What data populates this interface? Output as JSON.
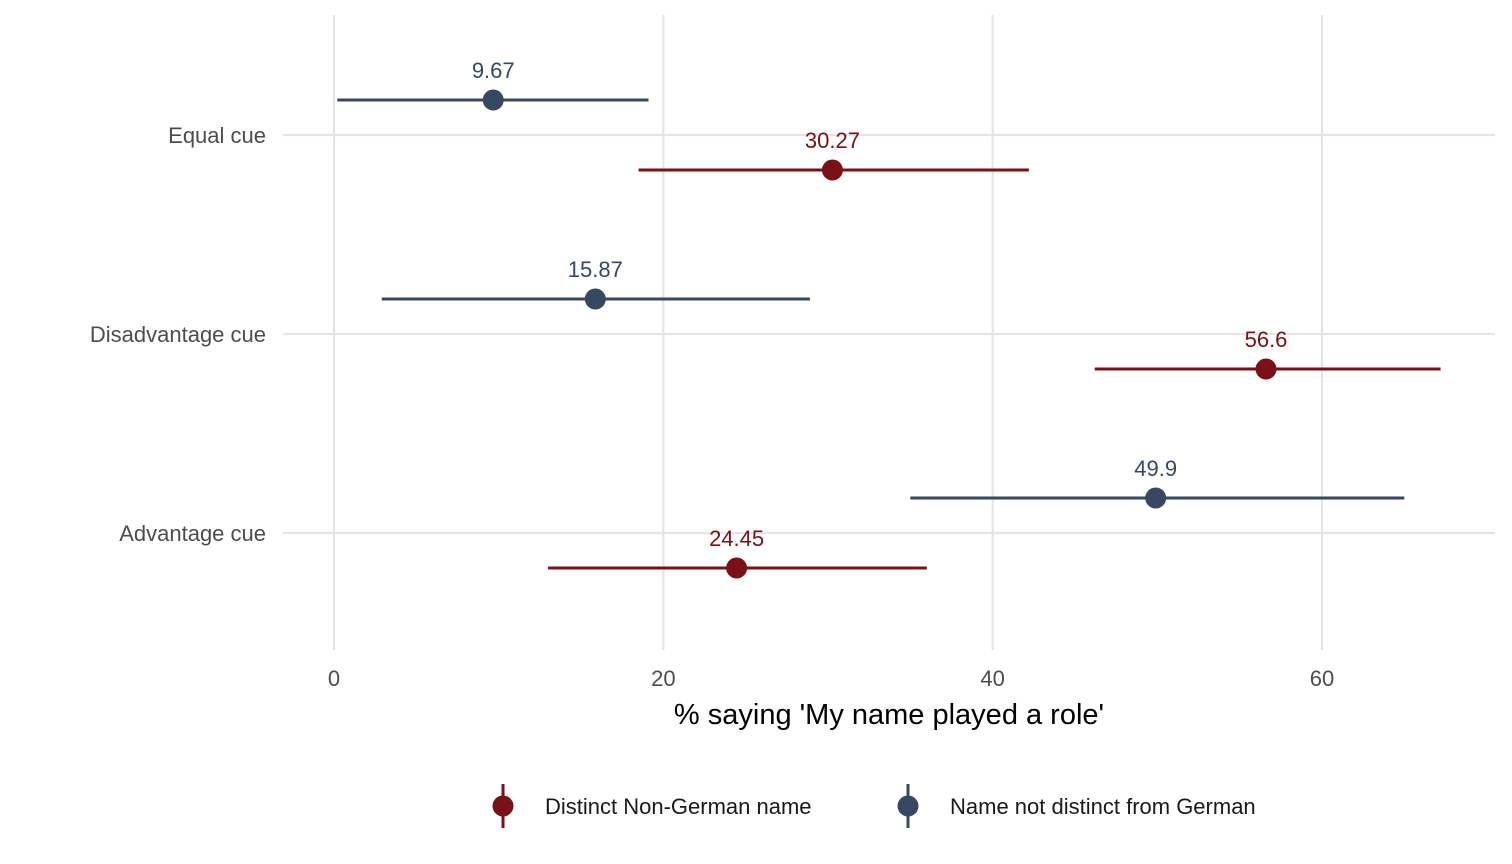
{
  "chart_data": {
    "type": "dot-errorbar",
    "xlabel": "% saying 'My name played a role'",
    "ylabel": "",
    "xlim": [
      0,
      70
    ],
    "x_ticks": [
      0,
      20,
      40,
      60
    ],
    "x_tick_labels": [
      "0",
      "20",
      "40",
      "60"
    ],
    "categories": [
      "Equal cue",
      "Disadvantage cue",
      "Advantage cue"
    ],
    "grid": true,
    "legend_position": "bottom",
    "series": [
      {
        "name": "Distinct Non-German name",
        "color": "#7b1016",
        "points": [
          {
            "category": "Equal cue",
            "value": 30.27,
            "label": "30.27",
            "low": 18.5,
            "high": 42.2
          },
          {
            "category": "Disadvantage cue",
            "value": 56.6,
            "label": "56.6",
            "low": 46.2,
            "high": 67.2
          },
          {
            "category": "Advantage cue",
            "value": 24.45,
            "label": "24.45",
            "low": 13.0,
            "high": 36.0
          }
        ]
      },
      {
        "name": "Name not distinct from German",
        "color": "#374862",
        "points": [
          {
            "category": "Equal cue",
            "value": 9.67,
            "label": "9.67",
            "low": 0.2,
            "high": 19.1
          },
          {
            "category": "Disadvantage cue",
            "value": 15.87,
            "label": "15.87",
            "low": 2.9,
            "high": 28.9
          },
          {
            "category": "Advantage cue",
            "value": 49.9,
            "label": "49.9",
            "low": 35.0,
            "high": 65.0
          }
        ]
      }
    ]
  }
}
